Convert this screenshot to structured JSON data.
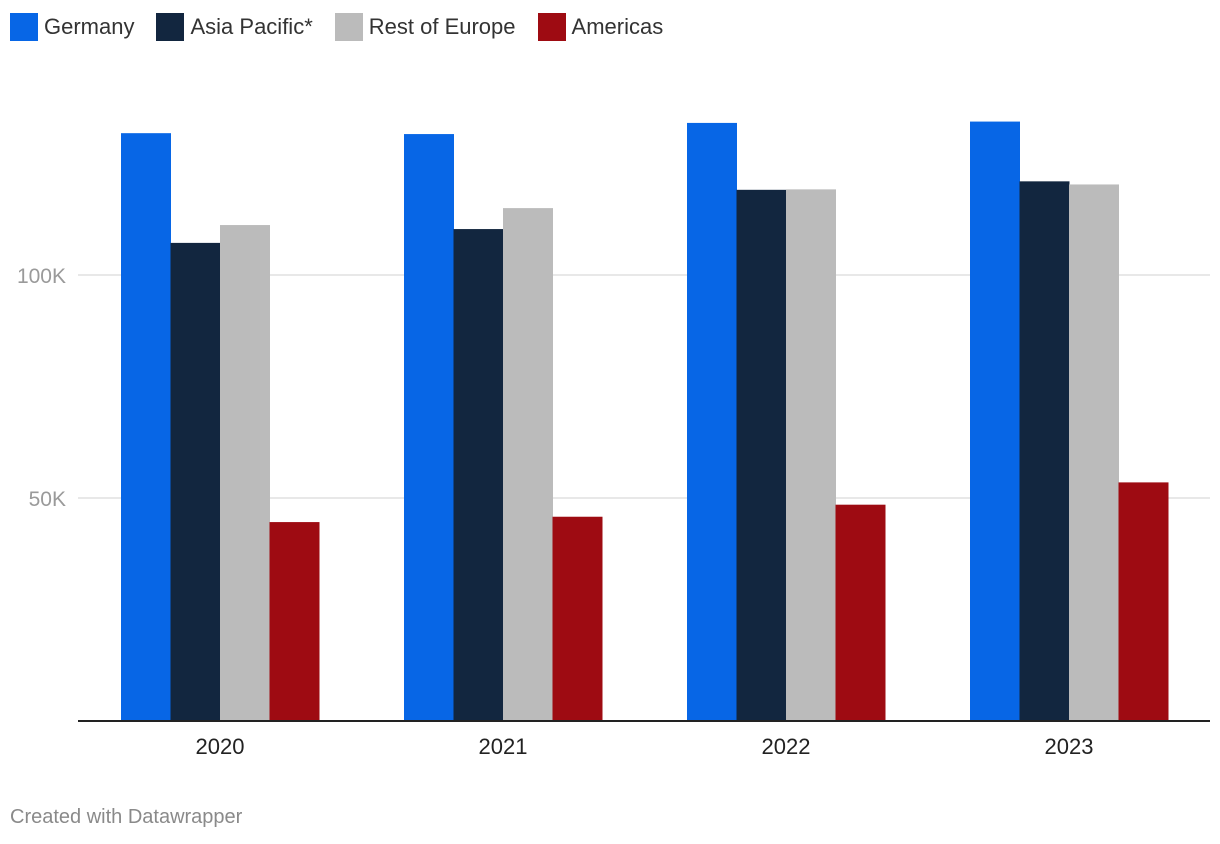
{
  "chart_data": {
    "type": "bar",
    "categories": [
      "2020",
      "2021",
      "2022",
      "2023"
    ],
    "series": [
      {
        "name": "Germany",
        "color": "#0766e6",
        "values": [
          131800,
          131600,
          134100,
          134400
        ]
      },
      {
        "name": "Asia Pacific*",
        "color": "#12263f",
        "values": [
          107200,
          110300,
          119100,
          121000
        ]
      },
      {
        "name": "Rest of Europe",
        "color": "#bbbbbb",
        "values": [
          111200,
          115000,
          119200,
          120300
        ]
      },
      {
        "name": "Americas",
        "color": "#9e0b12",
        "values": [
          44600,
          45800,
          48500,
          53500
        ]
      }
    ],
    "yticks": [
      50000,
      100000
    ],
    "ytick_labels": [
      "50K",
      "100K"
    ],
    "ylim": [
      0,
      140000
    ],
    "grid": true,
    "legend": "top-left",
    "title": "",
    "xlabel": "",
    "ylabel": ""
  },
  "footer": {
    "credit": "Created with Datawrapper"
  }
}
